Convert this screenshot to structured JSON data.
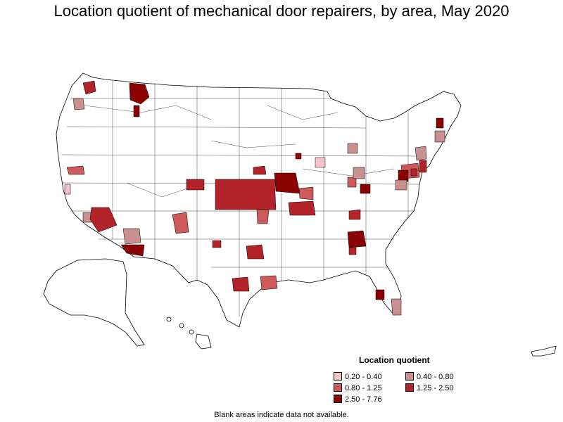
{
  "title": "Location quotient of mechanical door repairers, by area, May 2020",
  "legend": {
    "title": "Location quotient",
    "items": [
      {
        "label": "0.20 - 0.40",
        "color": "#f4c2c8"
      },
      {
        "label": "0.40 - 0.80",
        "color": "#c8918f"
      },
      {
        "label": "0.80 - 1.25",
        "color": "#cc5a5a"
      },
      {
        "label": "1.25 - 2.50",
        "color": "#b3242a"
      },
      {
        "label": "2.50 - 7.76",
        "color": "#8b0000"
      }
    ]
  },
  "note": "Blank areas indicate data not available.",
  "colors": {
    "q1": "#f4c2c8",
    "q2": "#c8918f",
    "q3": "#cc5a5a",
    "q4": "#b3242a",
    "q5": "#8b0000",
    "border": "#000000",
    "background": "#ffffff"
  }
}
